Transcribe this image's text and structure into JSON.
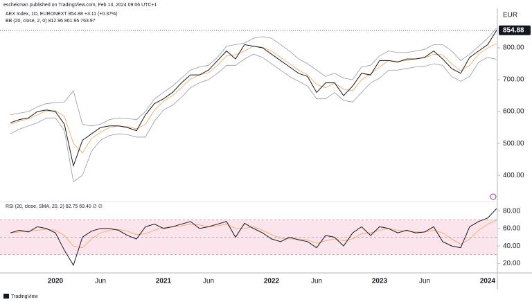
{
  "header": {
    "publisher": "eschekman published on TradingView.com, Feb 13, 2024 09:06 UTC+1",
    "currency": "EUR",
    "footer": "TradingView"
  },
  "chart_data": [
    {
      "type": "line",
      "legend": [
        "AEX Index, 1D, EURONEXT 854.88 +3.11 (+0.37%)",
        "BB (20, close, 2, 0) 812.96 861.95 763.97"
      ],
      "ylim": [
        320,
        863
      ],
      "yticks": [
        {
          "value": 400,
          "label": "400.00"
        },
        {
          "value": 500,
          "label": "500.00"
        },
        {
          "value": 600,
          "label": "600.00"
        },
        {
          "value": 700,
          "label": "700.00"
        },
        {
          "value": 800,
          "label": "800.00"
        }
      ],
      "last_price": {
        "value": 854.88,
        "label": "854.88"
      },
      "series": [
        {
          "color": "#9598a1",
          "values": [
            590,
            595,
            600,
            615,
            625,
            628,
            630,
            665,
            560,
            555,
            560,
            575,
            580,
            578,
            575,
            600,
            640,
            660,
            680,
            705,
            730,
            740,
            745,
            770,
            805,
            810,
            815,
            830,
            835,
            830,
            810,
            790,
            765,
            750,
            730,
            710,
            720,
            705,
            700,
            740,
            745,
            775,
            790,
            785,
            785,
            790,
            795,
            810,
            810,
            790,
            760,
            780,
            805,
            830,
            862
          ]
        },
        {
          "color": "#9598a1",
          "values": [
            530,
            545,
            555,
            565,
            580,
            580,
            540,
            380,
            400,
            475,
            510,
            525,
            530,
            528,
            520,
            520,
            570,
            605,
            620,
            645,
            675,
            690,
            700,
            720,
            745,
            745,
            765,
            780,
            770,
            750,
            730,
            710,
            695,
            680,
            640,
            640,
            660,
            635,
            630,
            660,
            690,
            705,
            730,
            730,
            735,
            740,
            742,
            750,
            745,
            710,
            695,
            710,
            755,
            770,
            764
          ]
        },
        {
          "color": "#f7a24a",
          "values": [
            560,
            570,
            577,
            590,
            602,
            603,
            585,
            500,
            470,
            515,
            535,
            550,
            555,
            553,
            546,
            560,
            605,
            632,
            650,
            675,
            702,
            715,
            722,
            745,
            775,
            778,
            790,
            805,
            802,
            790,
            770,
            750,
            730,
            715,
            685,
            675,
            690,
            670,
            665,
            700,
            718,
            740,
            760,
            758,
            760,
            765,
            768,
            780,
            778,
            750,
            728,
            745,
            780,
            800,
            813
          ]
        },
        {
          "color": "#131722",
          "values": [
            565,
            575,
            580,
            600,
            605,
            600,
            560,
            430,
            510,
            530,
            550,
            555,
            555,
            550,
            540,
            590,
            625,
            640,
            660,
            690,
            715,
            715,
            730,
            760,
            790,
            765,
            810,
            805,
            800,
            780,
            760,
            740,
            720,
            710,
            660,
            690,
            690,
            650,
            680,
            720,
            715,
            760,
            760,
            755,
            765,
            765,
            770,
            790,
            765,
            735,
            720,
            770,
            790,
            810,
            855
          ]
        }
      ]
    },
    {
      "type": "line",
      "legend": [
        "RSI (20, close, SMA, 20, 2) 82.75 69.40 ∅ ∅"
      ],
      "ylim": [
        10,
        90
      ],
      "yticks": [
        {
          "value": 20,
          "label": "20.00"
        },
        {
          "value": 40,
          "label": "40.00"
        },
        {
          "value": 60,
          "label": "60.00"
        },
        {
          "value": 80,
          "label": "80.00"
        }
      ],
      "band_lines": [
        70,
        50,
        30
      ],
      "band_color": "#fce4ec",
      "categories": [
        null,
        null,
        null,
        null,
        null,
        "2020",
        null,
        null,
        null,
        null,
        "Jun",
        null,
        null,
        null,
        null,
        null,
        null,
        "2021",
        null,
        null,
        null,
        null,
        "Jun",
        null,
        null,
        null,
        null,
        null,
        null,
        "2022",
        null,
        null,
        null,
        null,
        "Jun",
        null,
        null,
        null,
        null,
        null,
        null,
        "2023",
        null,
        null,
        null,
        null,
        "Jun",
        null,
        null,
        null,
        null,
        null,
        null,
        "2024",
        null
      ],
      "series": [
        {
          "color": "#f7a24a",
          "values": [
            55,
            56,
            57,
            58,
            59,
            58,
            52,
            40,
            38,
            48,
            55,
            58,
            59,
            57,
            53,
            54,
            58,
            61,
            62,
            63,
            65,
            64,
            62,
            63,
            65,
            60,
            60,
            62,
            58,
            53,
            49,
            48,
            48,
            47,
            43,
            46,
            48,
            46,
            48,
            54,
            55,
            58,
            60,
            58,
            57,
            56,
            56,
            58,
            55,
            48,
            42,
            48,
            58,
            65,
            69.4
          ]
        },
        {
          "color": "#131722",
          "values": [
            55,
            58,
            56,
            62,
            60,
            55,
            35,
            18,
            50,
            57,
            60,
            60,
            58,
            52,
            48,
            62,
            65,
            60,
            62,
            65,
            68,
            60,
            62,
            65,
            68,
            50,
            66,
            60,
            55,
            48,
            45,
            50,
            47,
            45,
            38,
            52,
            50,
            40,
            55,
            62,
            52,
            62,
            60,
            55,
            58,
            55,
            56,
            62,
            45,
            40,
            38,
            62,
            68,
            72,
            82.75
          ]
        }
      ]
    }
  ]
}
